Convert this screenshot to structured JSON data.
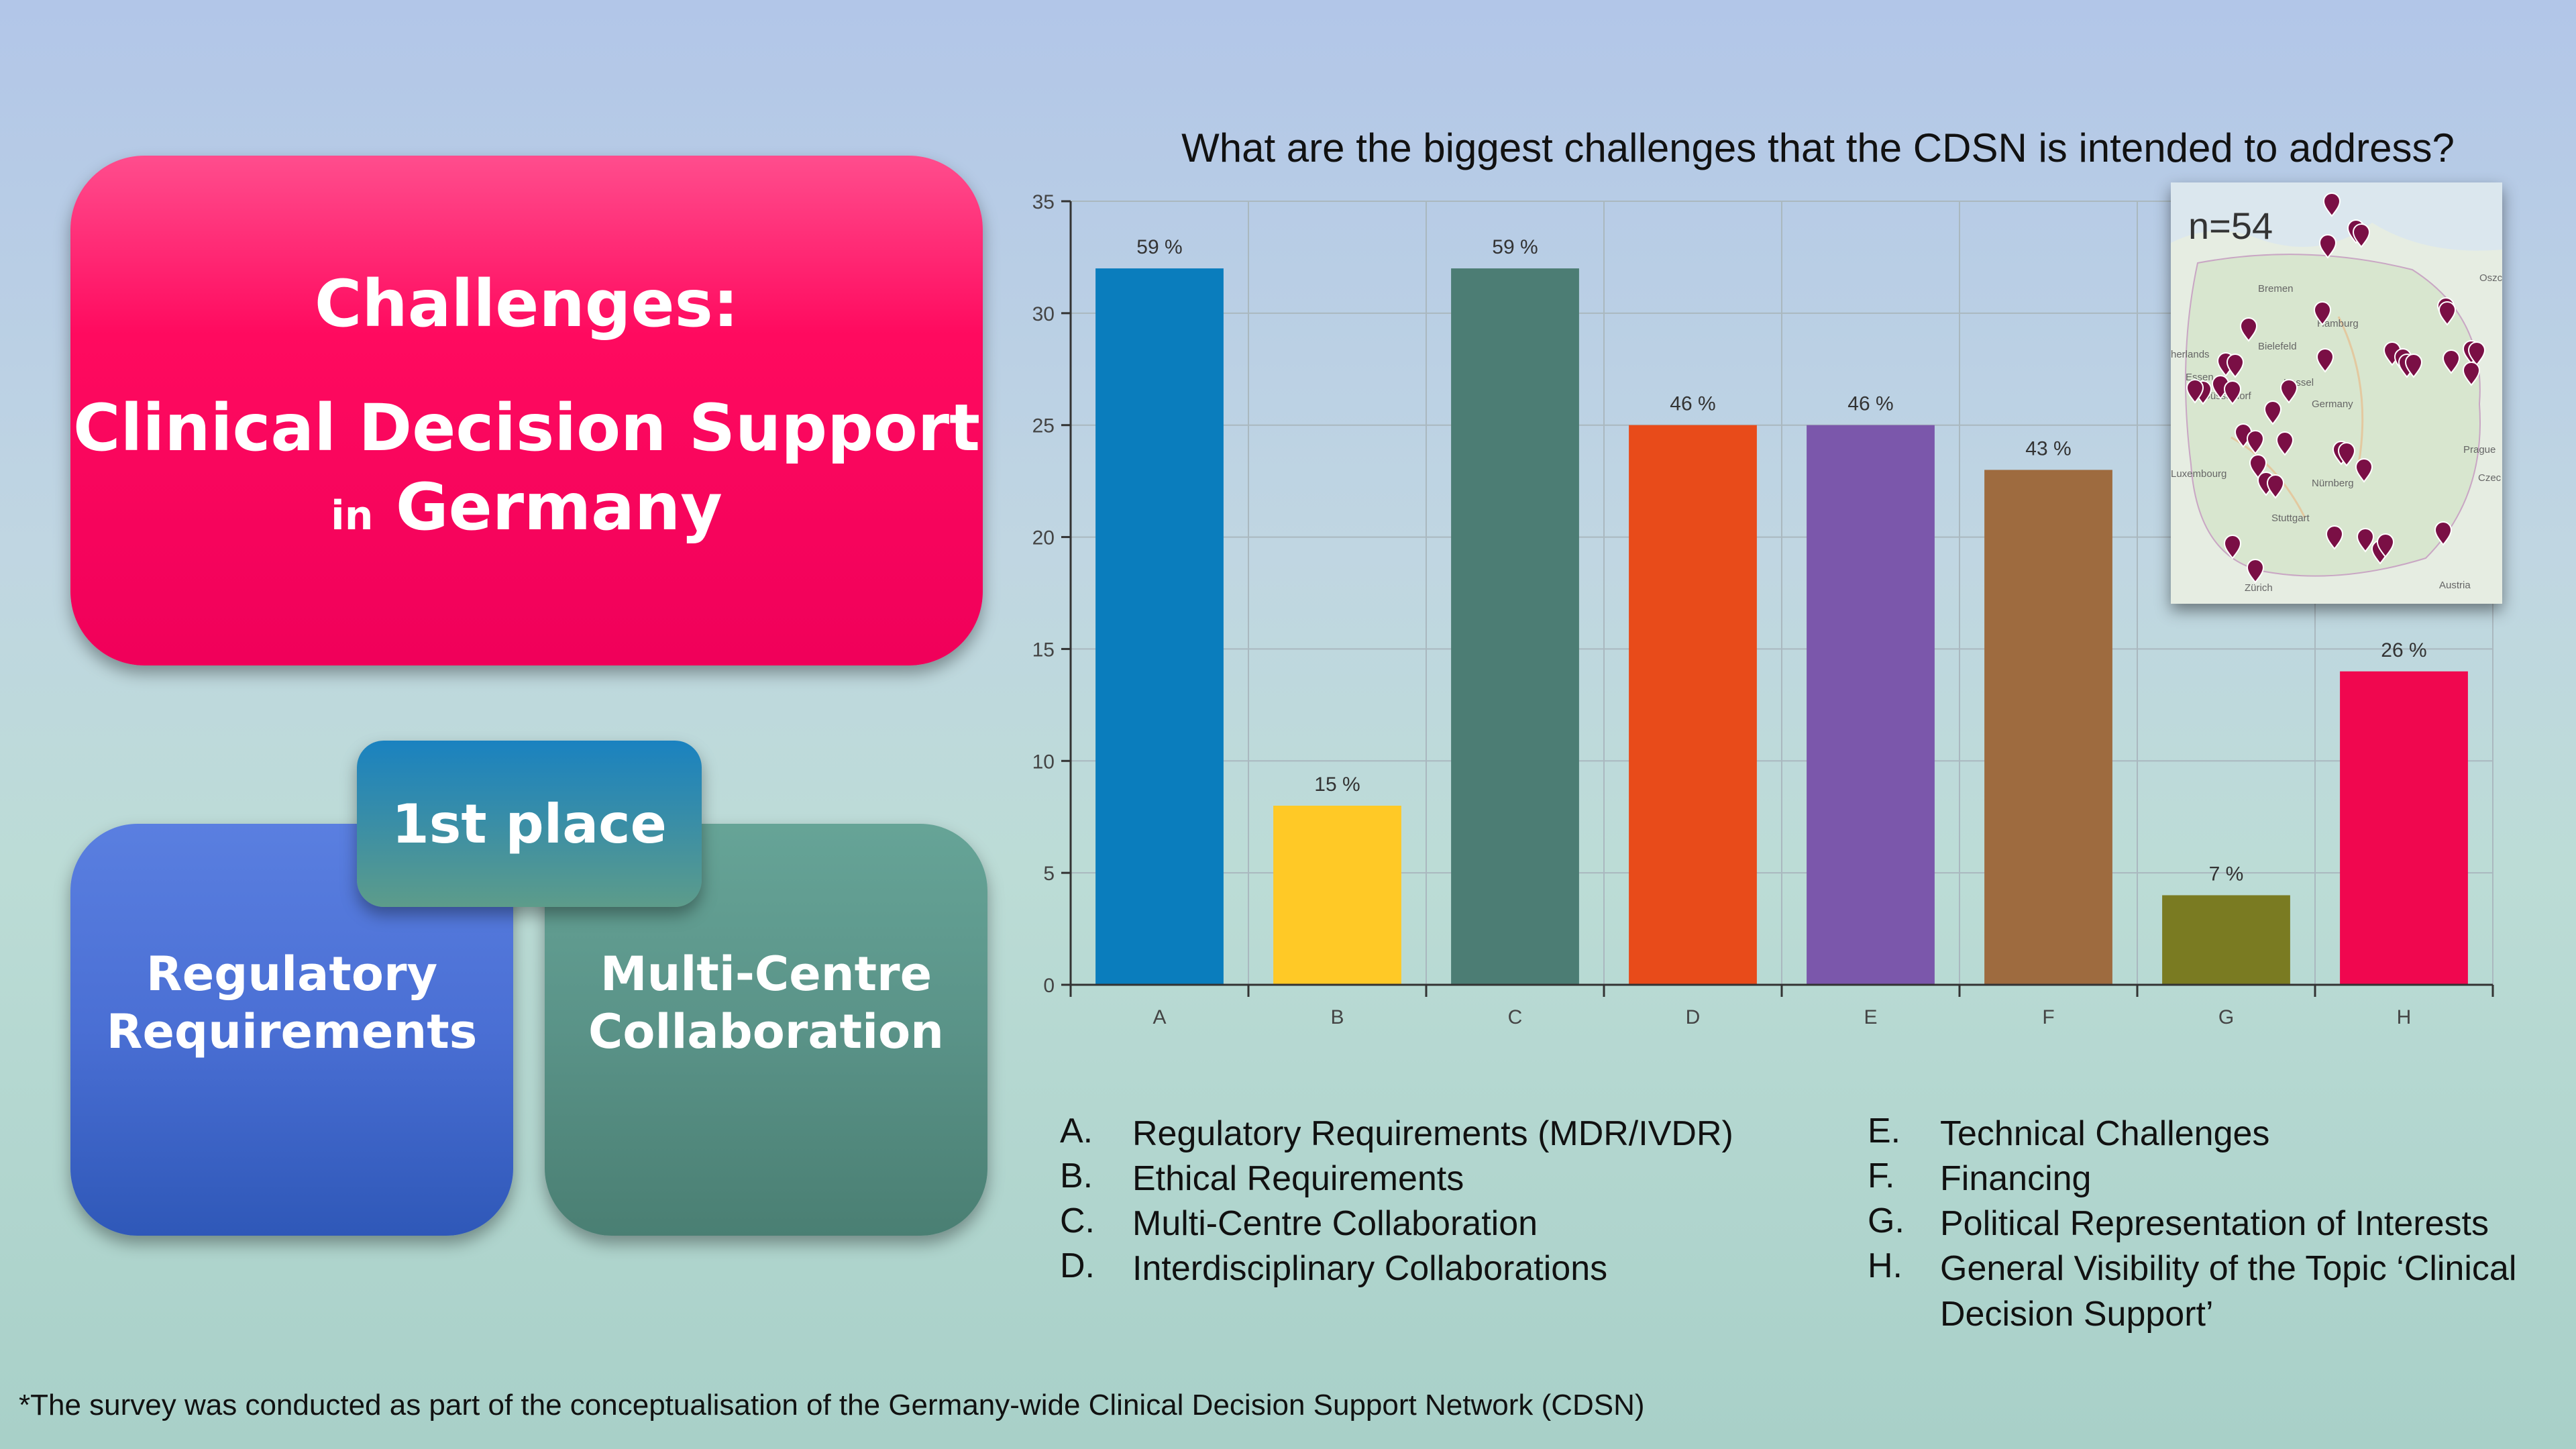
{
  "title_box": {
    "line1": "Challenges:",
    "line2": "Clinical Decision Support",
    "line3_small": "in",
    "line3_big": "Germany"
  },
  "first_place": "1st place",
  "box_regulatory": {
    "line1": "Regulatory",
    "line2": "Requirements"
  },
  "box_multicentre": {
    "line1": "Multi-Centre",
    "line2": "Collaboration"
  },
  "map": {
    "n_label": "n=54",
    "places": [
      "Bremen",
      "Hamburg",
      "herlands",
      "Bielefeld",
      "Essen",
      "Düsseldorf",
      "Germany",
      "Kassel",
      "Luxembourg",
      "Nürnberg",
      "Stuttgart",
      "Zürich",
      "Prague",
      "Czec",
      "Austria",
      "Oszc"
    ]
  },
  "legend": [
    {
      "letter": "A.",
      "text": "Regulatory Requirements (MDR/IVDR)"
    },
    {
      "letter": "B.",
      "text": "Ethical Requirements"
    },
    {
      "letter": "C.",
      "text": "Multi-Centre Collaboration"
    },
    {
      "letter": "D.",
      "text": "Interdisciplinary Collaborations"
    },
    {
      "letter": "E.",
      "text": "Technical Challenges"
    },
    {
      "letter": "F.",
      "text": "Financing"
    },
    {
      "letter": "G.",
      "text": "Political Representation of Interests"
    },
    {
      "letter": "H.",
      "text": "General Visibility of the Topic ‘Clinical Decision Support’"
    }
  ],
  "footnote": "*The survey was conducted as part of the conceptualisation of the Germany-wide Clinical Decision Support Network (CDSN)",
  "chart_data": {
    "type": "bar",
    "title": "What are the biggest challenges that the CDSN is intended to address?",
    "categories": [
      "A",
      "B",
      "C",
      "D",
      "E",
      "F",
      "G",
      "H"
    ],
    "values": [
      32,
      8,
      32,
      25,
      25,
      23,
      4,
      14
    ],
    "data_labels": [
      "59 %",
      "15 %",
      "59 %",
      "46 %",
      "46 %",
      "43 %",
      "7 %",
      "26 %"
    ],
    "colors": [
      "#0a7dbd",
      "#ffc926",
      "#4c7d74",
      "#e84b1a",
      "#7b57ab",
      "#9e6b3f",
      "#7a7b22",
      "#f0074f"
    ],
    "ylim": [
      0,
      35
    ],
    "yticks": [
      0,
      5,
      10,
      15,
      20,
      25,
      30,
      35
    ],
    "grid": true
  }
}
